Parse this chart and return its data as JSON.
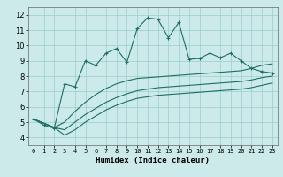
{
  "xlabel": "Humidex (Indice chaleur)",
  "bg_color": "#cceaea",
  "line_color": "#1e6e64",
  "grid_color": "#99cccc",
  "xlim": [
    -0.5,
    23.5
  ],
  "ylim": [
    3.5,
    12.5
  ],
  "xticks": [
    0,
    1,
    2,
    3,
    4,
    5,
    6,
    7,
    8,
    9,
    10,
    11,
    12,
    13,
    14,
    15,
    16,
    17,
    18,
    19,
    20,
    21,
    22,
    23
  ],
  "yticks": [
    4,
    5,
    6,
    7,
    8,
    9,
    10,
    11,
    12
  ],
  "curve1_x": [
    0,
    1,
    2,
    3,
    4,
    5,
    6,
    7,
    8,
    9,
    10,
    11,
    12,
    13,
    14,
    15,
    16,
    17,
    18,
    19,
    20,
    21,
    22,
    23
  ],
  "curve1_y": [
    5.2,
    4.8,
    4.6,
    7.5,
    7.3,
    9.0,
    8.7,
    9.5,
    9.8,
    8.9,
    11.1,
    11.8,
    11.7,
    10.5,
    11.5,
    9.1,
    9.15,
    9.5,
    9.2,
    9.5,
    9.0,
    8.5,
    8.3,
    8.2
  ],
  "curve2_x": [
    0,
    2,
    3,
    4,
    5,
    6,
    7,
    8,
    9,
    10,
    11,
    12,
    13,
    14,
    15,
    16,
    17,
    18,
    19,
    20,
    21,
    22,
    23
  ],
  "curve2_y": [
    5.2,
    4.65,
    5.0,
    5.7,
    6.3,
    6.8,
    7.2,
    7.5,
    7.7,
    7.85,
    7.9,
    7.95,
    8.0,
    8.05,
    8.1,
    8.15,
    8.2,
    8.25,
    8.3,
    8.35,
    8.5,
    8.7,
    8.8
  ],
  "curve3_x": [
    0,
    2,
    3,
    4,
    5,
    6,
    7,
    8,
    9,
    10,
    11,
    12,
    13,
    14,
    15,
    16,
    17,
    18,
    19,
    20,
    21,
    22,
    23
  ],
  "curve3_y": [
    5.2,
    4.65,
    4.5,
    5.0,
    5.5,
    5.9,
    6.3,
    6.6,
    6.85,
    7.05,
    7.15,
    7.25,
    7.3,
    7.35,
    7.4,
    7.45,
    7.5,
    7.55,
    7.6,
    7.65,
    7.75,
    7.9,
    8.0
  ],
  "curve4_x": [
    0,
    2,
    3,
    4,
    5,
    6,
    7,
    8,
    9,
    10,
    11,
    12,
    13,
    14,
    15,
    16,
    17,
    18,
    19,
    20,
    21,
    22,
    23
  ],
  "curve4_y": [
    5.2,
    4.65,
    4.15,
    4.5,
    5.0,
    5.4,
    5.8,
    6.1,
    6.35,
    6.55,
    6.65,
    6.75,
    6.8,
    6.85,
    6.9,
    6.95,
    7.0,
    7.05,
    7.1,
    7.15,
    7.25,
    7.4,
    7.55
  ]
}
